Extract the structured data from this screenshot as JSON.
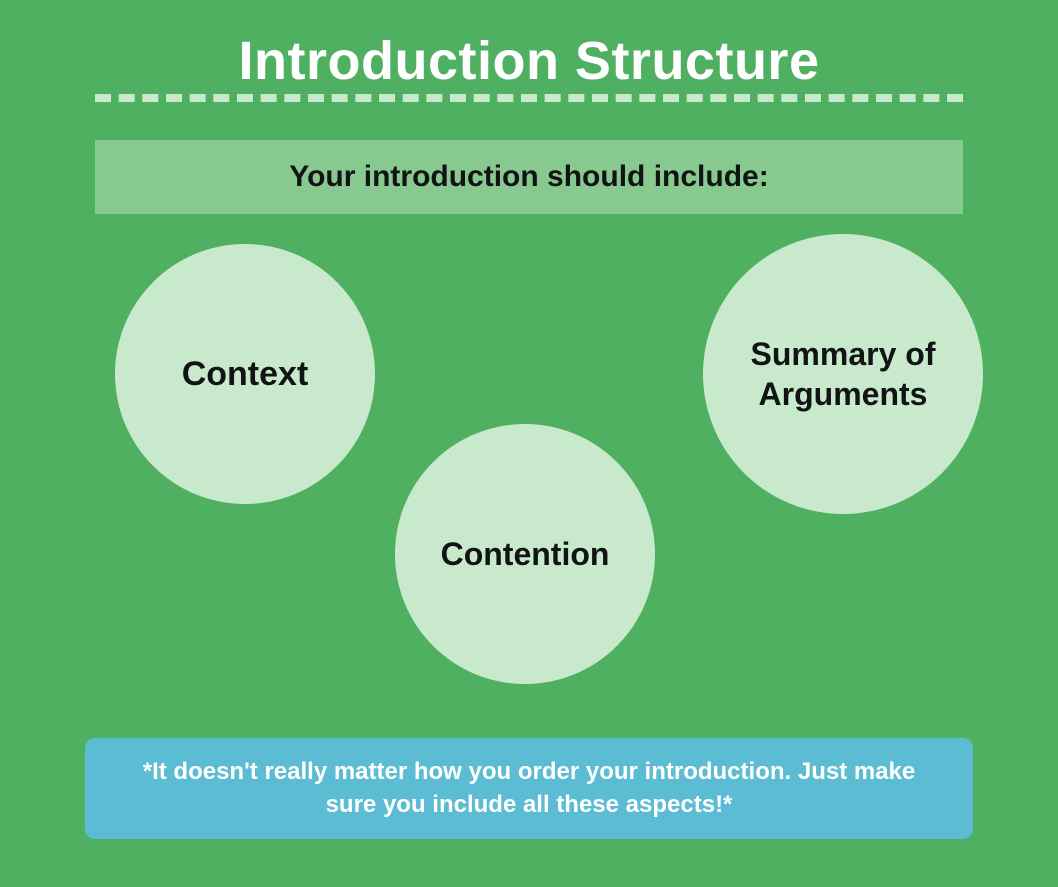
{
  "background_color": "#50b062",
  "title": {
    "text": "Introduction Structure",
    "color": "#ffffff",
    "fontsize": 54
  },
  "dashed_line": {
    "color": "#c9e9cc",
    "thickness": 8
  },
  "subtitle": {
    "text": "Your introduction should include:",
    "box_color": "#88c990",
    "text_color": "#101414",
    "fontsize": 30
  },
  "circles": [
    {
      "label": "Context",
      "bg_color": "#c9e9cc",
      "text_color": "#101414",
      "fontsize": 34
    },
    {
      "label": "Contention",
      "bg_color": "#c9e9cc",
      "text_color": "#101414",
      "fontsize": 32
    },
    {
      "label": "Summary of Arguments",
      "bg_color": "#c9e9cc",
      "text_color": "#101414",
      "fontsize": 32
    }
  ],
  "note": {
    "text": "*It doesn't really matter how you order your introduction. Just make sure you include all these aspects!*",
    "box_color": "#5bbcd4",
    "text_color": "#ffffff",
    "fontsize": 24
  }
}
